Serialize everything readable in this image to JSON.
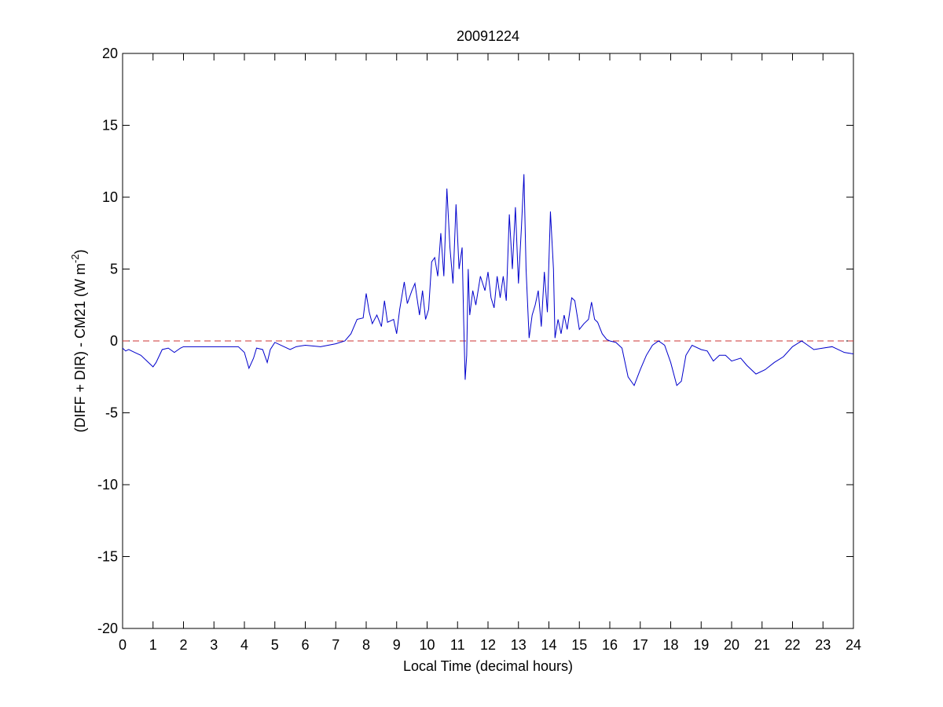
{
  "chart_data": {
    "type": "line",
    "title": "20091224",
    "xlabel": "Local Time (decimal hours)",
    "ylabel": {
      "text": "(DIFF + DIR) - CM21 (W m",
      "superscript": "-2",
      "suffix": ")"
    },
    "color": "#0000cc",
    "grid": false,
    "hline": {
      "y": 0,
      "color": "#cc3333",
      "style": "dashed"
    },
    "xlim": [
      0,
      24
    ],
    "ylim": [
      -20,
      20
    ],
    "xticks": [
      0,
      1,
      2,
      3,
      4,
      5,
      6,
      7,
      8,
      9,
      10,
      11,
      12,
      13,
      14,
      15,
      16,
      17,
      18,
      19,
      20,
      21,
      22,
      23,
      24
    ],
    "yticks": [
      -20,
      -15,
      -10,
      -5,
      0,
      5,
      10,
      15,
      20
    ],
    "x": [
      0,
      0.1,
      0.2,
      0.4,
      0.6,
      0.8,
      1.0,
      1.1,
      1.3,
      1.5,
      1.7,
      1.9,
      2.0,
      2.5,
      3.0,
      3.5,
      3.8,
      4.0,
      4.15,
      4.3,
      4.4,
      4.6,
      4.75,
      4.85,
      5.0,
      5.3,
      5.5,
      5.7,
      6.0,
      6.5,
      7.0,
      7.3,
      7.5,
      7.7,
      7.9,
      8.0,
      8.1,
      8.2,
      8.35,
      8.5,
      8.6,
      8.7,
      8.9,
      9.0,
      9.1,
      9.25,
      9.35,
      9.5,
      9.6,
      9.75,
      9.85,
      9.95,
      10.05,
      10.15,
      10.25,
      10.35,
      10.45,
      10.55,
      10.65,
      10.75,
      10.85,
      10.95,
      11.05,
      11.15,
      11.2,
      11.25,
      11.3,
      11.35,
      11.4,
      11.5,
      11.6,
      11.75,
      11.9,
      12.0,
      12.1,
      12.2,
      12.3,
      12.4,
      12.5,
      12.6,
      12.7,
      12.8,
      12.9,
      13.0,
      13.1,
      13.18,
      13.25,
      13.35,
      13.45,
      13.55,
      13.65,
      13.75,
      13.85,
      13.95,
      14.05,
      14.15,
      14.2,
      14.3,
      14.4,
      14.5,
      14.6,
      14.75,
      14.85,
      15.0,
      15.15,
      15.3,
      15.4,
      15.5,
      15.6,
      15.75,
      15.9,
      16.0,
      16.2,
      16.4,
      16.6,
      16.8,
      17.0,
      17.2,
      17.4,
      17.6,
      17.8,
      18.0,
      18.2,
      18.35,
      18.5,
      18.7,
      19.0,
      19.2,
      19.4,
      19.6,
      19.8,
      20.0,
      20.3,
      20.5,
      20.8,
      21.1,
      21.4,
      21.7,
      22.0,
      22.3,
      22.5,
      22.7,
      23.0,
      23.3,
      23.5,
      23.7,
      24.0
    ],
    "values": [
      -0.5,
      -0.7,
      -0.6,
      -0.8,
      -1.0,
      -1.4,
      -1.8,
      -1.5,
      -0.6,
      -0.5,
      -0.8,
      -0.5,
      -0.4,
      -0.4,
      -0.4,
      -0.4,
      -0.4,
      -0.8,
      -1.9,
      -1.2,
      -0.5,
      -0.6,
      -1.5,
      -0.6,
      -0.1,
      -0.4,
      -0.6,
      -0.4,
      -0.3,
      -0.4,
      -0.2,
      0.0,
      0.5,
      1.5,
      1.6,
      3.3,
      2.0,
      1.2,
      1.8,
      1.0,
      2.8,
      1.3,
      1.5,
      0.5,
      2.2,
      4.1,
      2.6,
      3.5,
      4.0,
      1.8,
      3.5,
      1.5,
      2.2,
      5.5,
      5.8,
      4.5,
      7.5,
      4.5,
      10.6,
      6.5,
      4.0,
      9.5,
      5.0,
      6.5,
      1.5,
      -2.7,
      -1.0,
      5.0,
      1.8,
      3.5,
      2.5,
      4.5,
      3.5,
      4.8,
      3.0,
      2.3,
      4.5,
      3.0,
      4.5,
      2.8,
      8.8,
      5.0,
      9.3,
      4.0,
      8.0,
      11.6,
      5.0,
      0.2,
      1.8,
      2.5,
      3.5,
      1.0,
      4.8,
      2.0,
      9.0,
      5.0,
      0.2,
      1.5,
      0.5,
      1.8,
      0.8,
      3.0,
      2.8,
      0.8,
      1.2,
      1.5,
      2.7,
      1.5,
      1.3,
      0.5,
      0.1,
      0.0,
      -0.1,
      -0.5,
      -2.5,
      -3.1,
      -2.0,
      -1.0,
      -0.3,
      0.0,
      -0.3,
      -1.5,
      -3.1,
      -2.8,
      -1.0,
      -0.3,
      -0.6,
      -0.7,
      -1.4,
      -1.0,
      -1.0,
      -1.4,
      -1.2,
      -1.7,
      -2.3,
      -2.0,
      -1.5,
      -1.1,
      -0.4,
      0.0,
      -0.3,
      -0.6,
      -0.5,
      -0.4,
      -0.6,
      -0.8,
      -0.9
    ]
  }
}
